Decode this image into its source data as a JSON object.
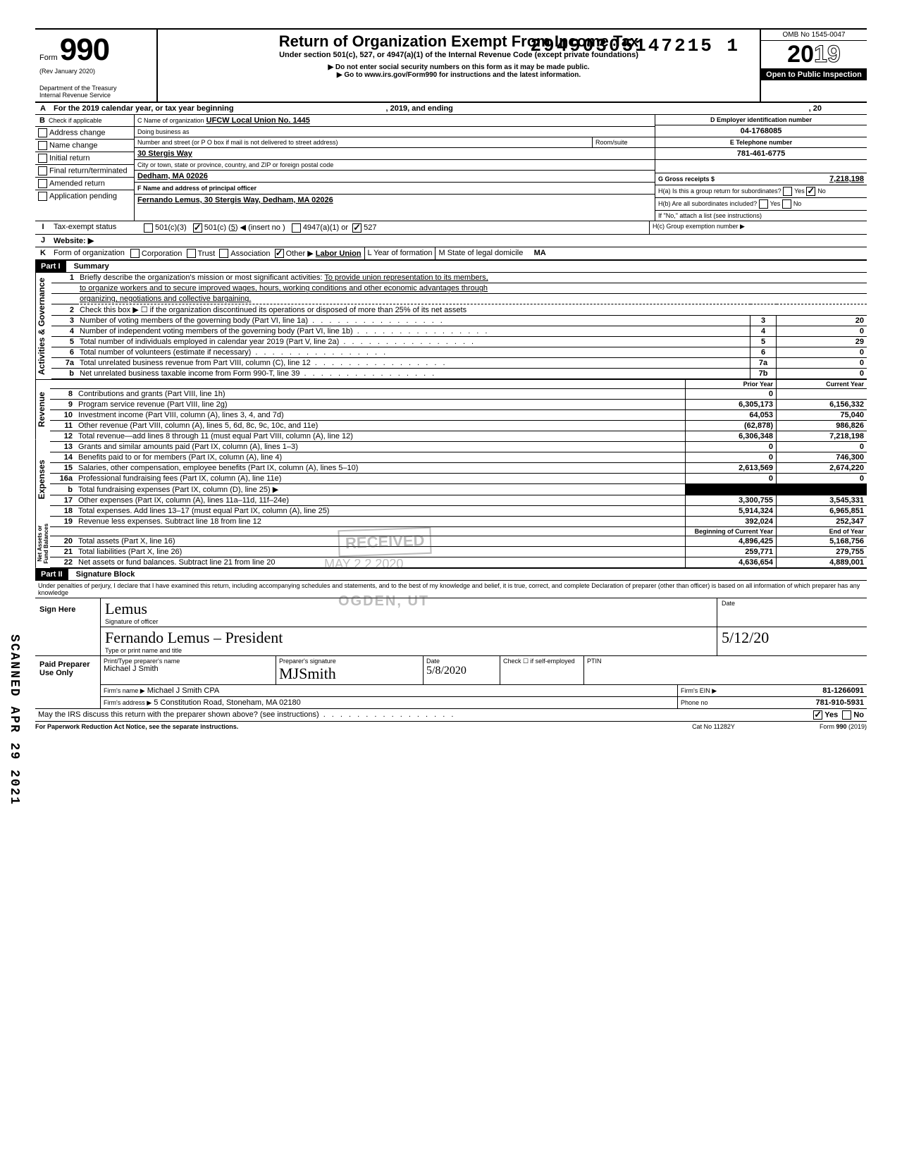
{
  "stamp_number": "29490305147215  1",
  "header": {
    "form_word": "Form",
    "form_number": "990",
    "rev": "(Rev January 2020)",
    "dept": "Department of the Treasury",
    "irs": "Internal Revenue Service",
    "title": "Return of Organization Exempt From Income Tax",
    "subtitle": "Under section 501(c), 527, or 4947(a)(1) of the Internal Revenue Code (except private foundations)",
    "warn": "▶ Do not enter social security numbers on this form as it may be made public.",
    "goto": "▶ Go to www.irs.gov/Form990 for instructions and the latest information.",
    "omb": "OMB No 1545-0047",
    "year_prefix": "20",
    "year_suffix": "19",
    "open": "Open to Public Inspection"
  },
  "A": {
    "label": "For the 2019 calendar year, or tax year beginning",
    "mid": ", 2019, and ending",
    "end": ", 20"
  },
  "B": {
    "label": "Check if applicable",
    "items": [
      "Address change",
      "Name change",
      "Initial return",
      "Final return/terminated",
      "Amended return",
      "Application pending"
    ]
  },
  "C": {
    "name_label": "C Name of organization",
    "name": "UFCW Local Union No. 1445",
    "dba_label": "Doing business as",
    "addr_label": "Number and street (or P O box if mail is not delivered to street address)",
    "addr": "30 Stergis Way",
    "room_label": "Room/suite",
    "city_label": "City or town, state or province, country, and ZIP or foreign postal code",
    "city": "Dedham, MA 02026"
  },
  "D": {
    "label": "D Employer identification number",
    "val": "04-1768085"
  },
  "E": {
    "label": "E Telephone number",
    "val": "781-461-6775"
  },
  "F": {
    "label": "F Name and address of principal officer",
    "val": "Fernando Lemus, 30 Stergis Way, Dedham, MA 02026"
  },
  "G": {
    "label": "G Gross receipts $",
    "val": "7,218,198"
  },
  "H": {
    "a": "H(a) Is this a group return for subordinates?",
    "b": "H(b) Are all subordinates included?",
    "note": "If \"No,\" attach a list (see instructions)",
    "c": "H(c) Group exemption number ▶",
    "yes": "Yes",
    "no": "No"
  },
  "I": {
    "label": "Tax-exempt status",
    "o1": "501(c)(3)",
    "o2": "501(c) (",
    "o2n": "5",
    "o2e": ") ◀ (insert no )",
    "o3": "4947(a)(1) or",
    "o4": "527"
  },
  "J": {
    "label": "Website: ▶"
  },
  "K": {
    "label": "Form of organization",
    "opts": [
      "Corporation",
      "Trust",
      "Association",
      "Other ▶"
    ],
    "other": "Labor Union",
    "L": "L Year of formation",
    "M": "M State of legal domicile",
    "Mval": "MA"
  },
  "part1": {
    "title": "Part I",
    "subtitle": "Summary",
    "l1_pre": "Briefly describe the organization's mission or most significant activities:",
    "l1": "To provide union representation to its members,",
    "l1b": "to organize workers and to secure improved wages, hours, working conditions and other economic advantages through",
    "l1c": "organizing, negotiations and collective bargaining.",
    "l2": "Check this box ▶ ☐ if the organization discontinued its operations or disposed of more than 25% of its net assets",
    "l3": "Number of voting members of the governing body (Part VI, line 1a)",
    "l4": "Number of independent voting members of the governing body (Part VI, line 1b)",
    "l5": "Total number of individuals employed in calendar year 2019 (Part V, line 2a)",
    "l6": "Total number of volunteers (estimate if necessary)",
    "l7a": "Total unrelated business revenue from Part VIII, column (C), line 12",
    "l7b": "Net unrelated business taxable income from Form 990-T, line 39",
    "v3": "20",
    "v4": "0",
    "v5": "29",
    "v6": "0",
    "v7a": "0",
    "v7b": "0"
  },
  "revexp": {
    "hdr_prior": "Prior Year",
    "hdr_curr": "Current Year",
    "rows": [
      {
        "n": "8",
        "d": "Contributions and grants (Part VIII, line 1h)",
        "p": "0",
        "c": ""
      },
      {
        "n": "9",
        "d": "Program service revenue (Part VIII, line 2g)",
        "p": "6,305,173",
        "c": "6,156,332"
      },
      {
        "n": "10",
        "d": "Investment income (Part VIII, column (A), lines 3, 4, and 7d)",
        "p": "64,053",
        "c": "75,040"
      },
      {
        "n": "11",
        "d": "Other revenue (Part VIII, column (A), lines 5, 6d, 8c, 9c, 10c, and 11e)",
        "p": "(62,878)",
        "c": "986,826"
      },
      {
        "n": "12",
        "d": "Total revenue—add lines 8 through 11 (must equal Part VIII, column (A), line 12)",
        "p": "6,306,348",
        "c": "7,218,198"
      },
      {
        "n": "13",
        "d": "Grants and similar amounts paid (Part IX, column (A), lines 1–3)",
        "p": "0",
        "c": "0"
      },
      {
        "n": "14",
        "d": "Benefits paid to or for members (Part IX, column (A), line 4)",
        "p": "0",
        "c": "746,300"
      },
      {
        "n": "15",
        "d": "Salaries, other compensation, employee benefits (Part IX, column (A), lines 5–10)",
        "p": "2,613,569",
        "c": "2,674,220"
      },
      {
        "n": "16a",
        "d": "Professional fundraising fees (Part IX, column (A), line 11e)",
        "p": "0",
        "c": "0"
      },
      {
        "n": "b",
        "d": "Total fundraising expenses (Part IX, column (D), line 25) ▶",
        "p": "shade",
        "c": "shade"
      },
      {
        "n": "17",
        "d": "Other expenses (Part IX, column (A), lines 11a–11d, 11f–24e)",
        "p": "3,300,755",
        "c": "3,545,331"
      },
      {
        "n": "18",
        "d": "Total expenses. Add lines 13–17 (must equal Part IX, column (A), line 25)",
        "p": "5,914,324",
        "c": "6,965,851"
      },
      {
        "n": "19",
        "d": "Revenue less expenses. Subtract line 18 from line 12",
        "p": "392,024",
        "c": "252,347"
      }
    ],
    "hdr_beg": "Beginning of Current Year",
    "hdr_end": "End of Year",
    "rows2": [
      {
        "n": "20",
        "d": "Total assets (Part X, line 16)",
        "p": "4,896,425",
        "c": "5,168,756"
      },
      {
        "n": "21",
        "d": "Total liabilities (Part X, line 26)",
        "p": "259,771",
        "c": "279,755"
      },
      {
        "n": "22",
        "d": "Net assets or fund balances. Subtract line 21 from line 20",
        "p": "4,636,654",
        "c": "4,889,001"
      }
    ],
    "vlab_gov": "Activities & Governance",
    "vlab_rev": "Revenue",
    "vlab_exp": "Expenses",
    "vlab_net": "Net Assets or Fund Balances"
  },
  "part2": {
    "title": "Part II",
    "subtitle": "Signature Block",
    "decl": "Under penalties of perjury, I declare that I have examined this return, including accompanying schedules and statements, and to the best of my knowledge and belief, it is true, correct, and complete Declaration of preparer (other than officer) is based on all information of which preparer has any knowledge",
    "sign": "Sign Here",
    "sig_label": "Signature of officer",
    "date_label": "Date",
    "name_label": "Type or print name and title",
    "officer_name": "Fernando Lemus – President",
    "officer_date": "5/12/20",
    "paid": "Paid Preparer Use Only",
    "prep_name_label": "Print/Type preparer's name",
    "prep_name": "Michael J Smith",
    "prep_sig_label": "Preparer's signature",
    "prep_date_label": "Date",
    "prep_date": "5/8/2020",
    "check_if": "Check ☐ if self-employed",
    "ptin": "PTIN",
    "firm_name_label": "Firm's name ▶",
    "firm_name": "Michael J Smith CPA",
    "firm_ein_label": "Firm's EIN ▶",
    "firm_ein": "81-1266091",
    "firm_addr_label": "Firm's address ▶",
    "firm_addr": "5 Constitution Road, Stoneham, MA 02180",
    "phone_label": "Phone no",
    "phone": "781-910-5931",
    "may": "May the IRS discuss this return with the preparer shown above? (see instructions)",
    "yes": "Yes",
    "no": "No"
  },
  "footer": {
    "left": "For Paperwork Reduction Act Notice, see the separate instructions.",
    "mid": "Cat No 11282Y",
    "right": "Form 990 (2019)"
  },
  "watermark": {
    "received": "RECEIVED",
    "date": "MAY 2 2 2020",
    "ogden": "OGDEN, UT"
  },
  "sidestamp": "SCANNED APR 29 2021"
}
